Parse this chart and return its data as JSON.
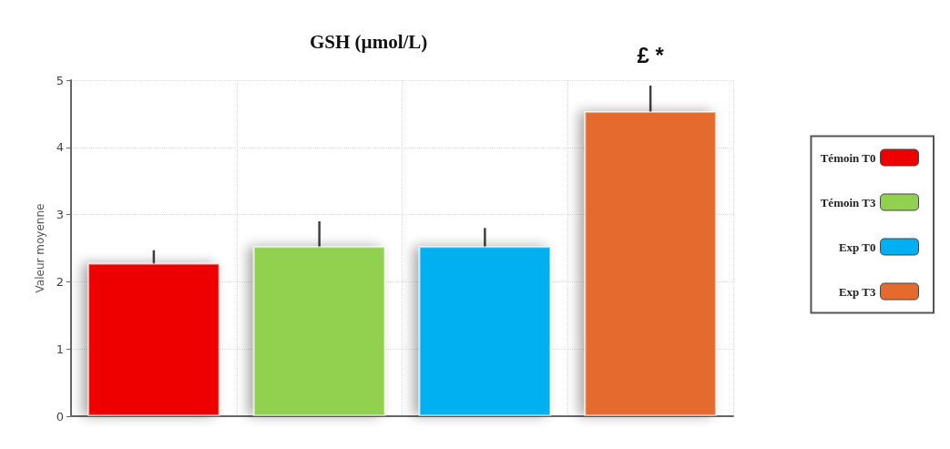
{
  "chart_data": {
    "type": "bar",
    "title": "GSH (µmol/L)",
    "ylabel": "Valeur moyenne",
    "categories": [
      null,
      null,
      null,
      null
    ],
    "series": [
      {
        "name": "Témoin T0",
        "color": "#ee0000",
        "values": [
          2.28,
          null,
          null,
          null
        ],
        "errors": [
          0.19,
          null,
          null,
          null
        ]
      },
      {
        "name": "Témoin T3",
        "color": "#92d050",
        "values": [
          null,
          2.53,
          null,
          null
        ],
        "errors": [
          null,
          0.37,
          null,
          null
        ]
      },
      {
        "name": "Exp T0",
        "color": "#00b0f0",
        "values": [
          null,
          null,
          2.53,
          null
        ],
        "errors": [
          null,
          null,
          0.27,
          null
        ]
      },
      {
        "name": "Exp T3",
        "color": "#e46a2e",
        "values": [
          null,
          null,
          null,
          4.54
        ],
        "errors": [
          null,
          null,
          null,
          0.38
        ]
      }
    ],
    "annotations": [
      "£ *"
    ],
    "ylim": [
      0,
      5
    ],
    "yticks": [
      0,
      1,
      2,
      3,
      4,
      5
    ],
    "grid": true,
    "legend": "right"
  }
}
